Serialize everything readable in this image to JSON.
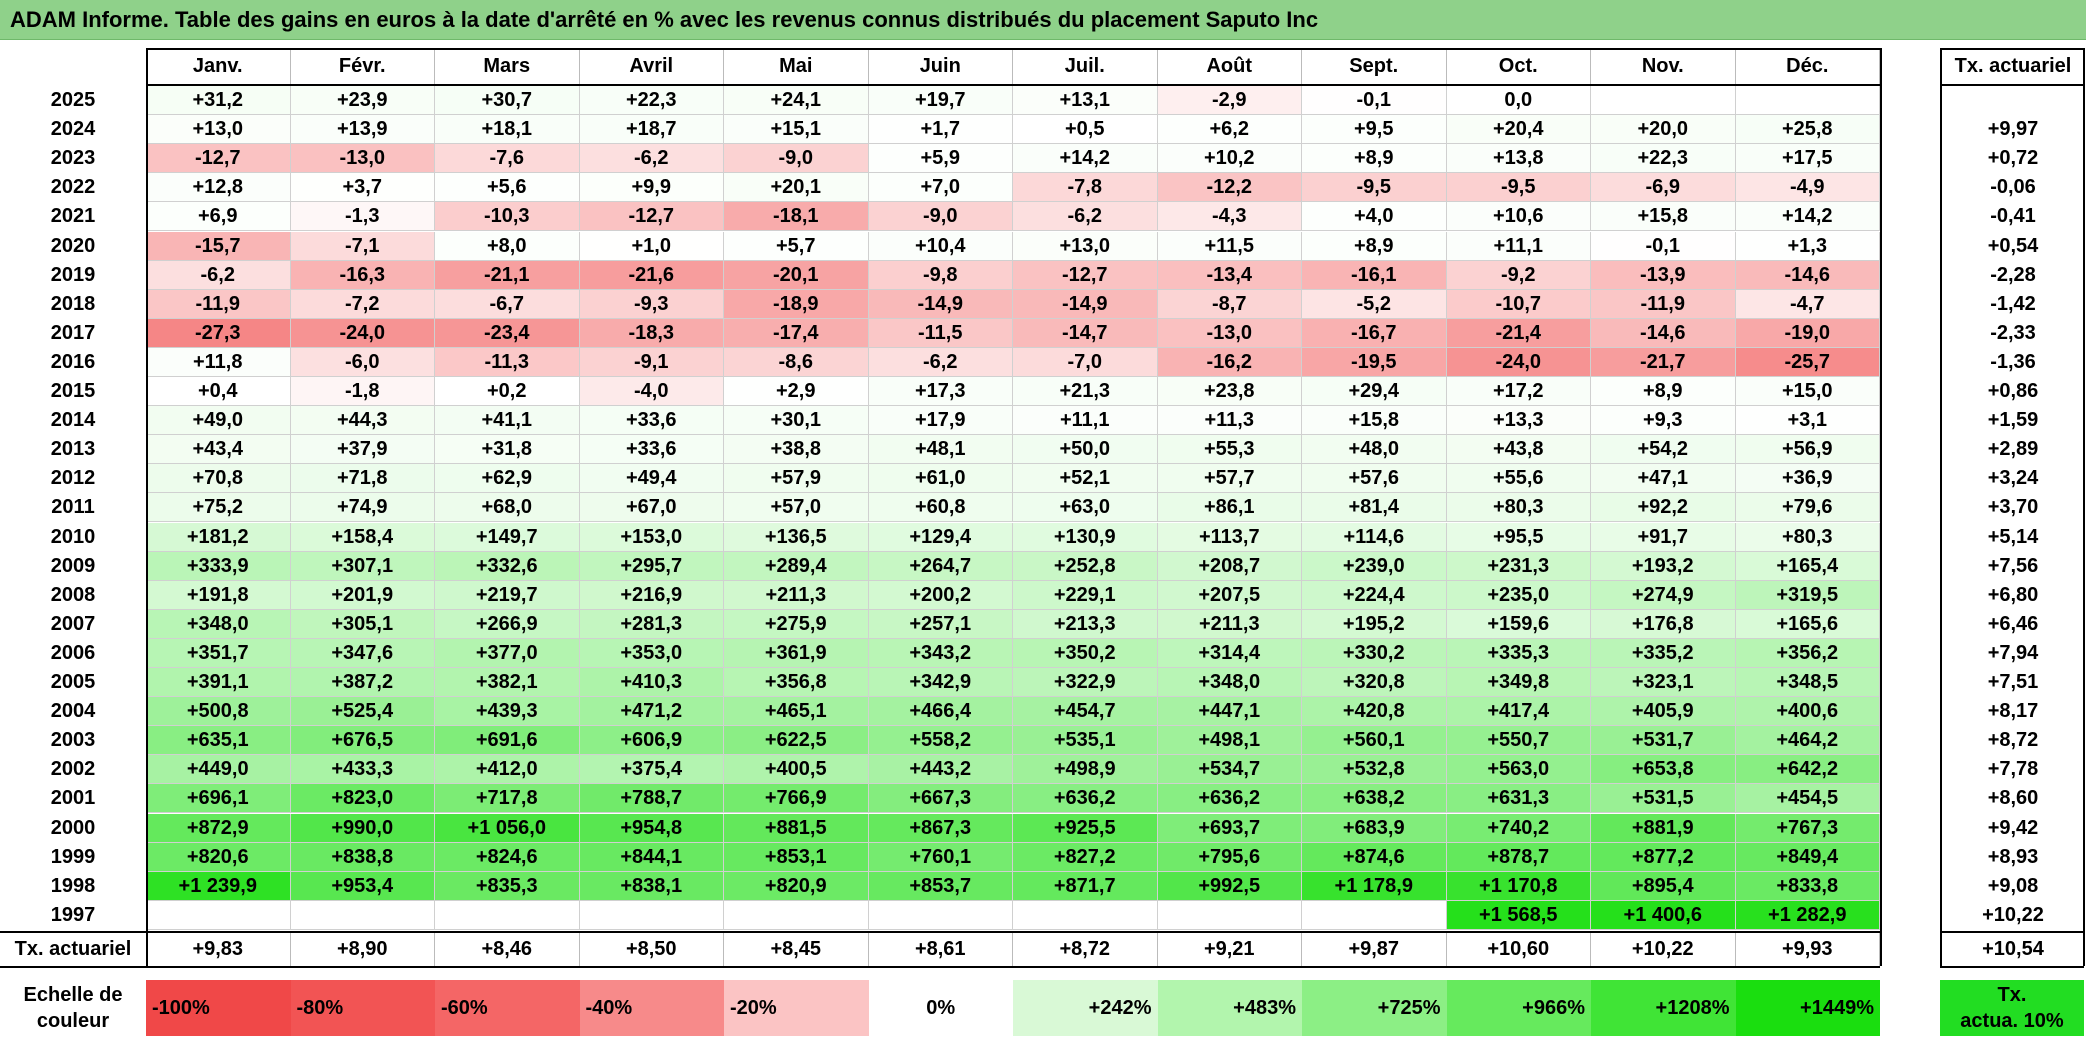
{
  "title": "ADAM Informe. Table des gains en euros à la date d'arrêté en % avec les revenus connus distribués du placement Saputo Inc",
  "chart_data": {
    "type": "table",
    "months": [
      "Janv.",
      "Févr.",
      "Mars",
      "Avril",
      "Mai",
      "Juin",
      "Juil.",
      "Août",
      "Sept.",
      "Oct.",
      "Nov.",
      "Déc."
    ],
    "rate_header": "Tx. actuariel",
    "rows": [
      {
        "year": "2025",
        "values": [
          "+31,2",
          "+23,9",
          "+30,7",
          "+22,3",
          "+24,1",
          "+19,7",
          "+13,1",
          "-2,9",
          "-0,1",
          "0,0",
          "",
          ""
        ],
        "rate": ""
      },
      {
        "year": "2024",
        "values": [
          "+13,0",
          "+13,9",
          "+18,1",
          "+18,7",
          "+15,1",
          "+1,7",
          "+0,5",
          "+6,2",
          "+9,5",
          "+20,4",
          "+20,0",
          "+25,8"
        ],
        "rate": "+9,97"
      },
      {
        "year": "2023",
        "values": [
          "-12,7",
          "-13,0",
          "-7,6",
          "-6,2",
          "-9,0",
          "+5,9",
          "+14,2",
          "+10,2",
          "+8,9",
          "+13,8",
          "+22,3",
          "+17,5"
        ],
        "rate": "+0,72"
      },
      {
        "year": "2022",
        "values": [
          "+12,8",
          "+3,7",
          "+5,6",
          "+9,9",
          "+20,1",
          "+7,0",
          "-7,8",
          "-12,2",
          "-9,5",
          "-9,5",
          "-6,9",
          "-4,9"
        ],
        "rate": "-0,06"
      },
      {
        "year": "2021",
        "values": [
          "+6,9",
          "-1,3",
          "-10,3",
          "-12,7",
          "-18,1",
          "-9,0",
          "-6,2",
          "-4,3",
          "+4,0",
          "+10,6",
          "+15,8",
          "+14,2"
        ],
        "rate": "-0,41"
      },
      {
        "year": "2020",
        "values": [
          "-15,7",
          "-7,1",
          "+8,0",
          "+1,0",
          "+5,7",
          "+10,4",
          "+13,0",
          "+11,5",
          "+8,9",
          "+11,1",
          "-0,1",
          "+1,3"
        ],
        "rate": "+0,54"
      },
      {
        "year": "2019",
        "values": [
          "-6,2",
          "-16,3",
          "-21,1",
          "-21,6",
          "-20,1",
          "-9,8",
          "-12,7",
          "-13,4",
          "-16,1",
          "-9,2",
          "-13,9",
          "-14,6"
        ],
        "rate": "-2,28"
      },
      {
        "year": "2018",
        "values": [
          "-11,9",
          "-7,2",
          "-6,7",
          "-9,3",
          "-18,9",
          "-14,9",
          "-14,9",
          "-8,7",
          "-5,2",
          "-10,7",
          "-11,9",
          "-4,7"
        ],
        "rate": "-1,42"
      },
      {
        "year": "2017",
        "values": [
          "-27,3",
          "-24,0",
          "-23,4",
          "-18,3",
          "-17,4",
          "-11,5",
          "-14,7",
          "-13,0",
          "-16,7",
          "-21,4",
          "-14,6",
          "-19,0"
        ],
        "rate": "-2,33"
      },
      {
        "year": "2016",
        "values": [
          "+11,8",
          "-6,0",
          "-11,3",
          "-9,1",
          "-8,6",
          "-6,2",
          "-7,0",
          "-16,2",
          "-19,5",
          "-24,0",
          "-21,7",
          "-25,7"
        ],
        "rate": "-1,36"
      },
      {
        "year": "2015",
        "values": [
          "+0,4",
          "-1,8",
          "+0,2",
          "-4,0",
          "+2,9",
          "+17,3",
          "+21,3",
          "+23,8",
          "+29,4",
          "+17,2",
          "+8,9",
          "+15,0"
        ],
        "rate": "+0,86"
      },
      {
        "year": "2014",
        "values": [
          "+49,0",
          "+44,3",
          "+41,1",
          "+33,6",
          "+30,1",
          "+17,9",
          "+11,1",
          "+11,3",
          "+15,8",
          "+13,3",
          "+9,3",
          "+3,1"
        ],
        "rate": "+1,59"
      },
      {
        "year": "2013",
        "values": [
          "+43,4",
          "+37,9",
          "+31,8",
          "+33,6",
          "+38,8",
          "+48,1",
          "+50,0",
          "+55,3",
          "+48,0",
          "+43,8",
          "+54,2",
          "+56,9"
        ],
        "rate": "+2,89"
      },
      {
        "year": "2012",
        "values": [
          "+70,8",
          "+71,8",
          "+62,9",
          "+49,4",
          "+57,9",
          "+61,0",
          "+52,1",
          "+57,7",
          "+57,6",
          "+55,6",
          "+47,1",
          "+36,9"
        ],
        "rate": "+3,24"
      },
      {
        "year": "2011",
        "values": [
          "+75,2",
          "+74,9",
          "+68,0",
          "+67,0",
          "+57,0",
          "+60,8",
          "+63,0",
          "+86,1",
          "+81,4",
          "+80,3",
          "+92,2",
          "+79,6"
        ],
        "rate": "+3,70"
      },
      {
        "year": "2010",
        "values": [
          "+181,2",
          "+158,4",
          "+149,7",
          "+153,0",
          "+136,5",
          "+129,4",
          "+130,9",
          "+113,7",
          "+114,6",
          "+95,5",
          "+91,7",
          "+80,3"
        ],
        "rate": "+5,14"
      },
      {
        "year": "2009",
        "values": [
          "+333,9",
          "+307,1",
          "+332,6",
          "+295,7",
          "+289,4",
          "+264,7",
          "+252,8",
          "+208,7",
          "+239,0",
          "+231,3",
          "+193,2",
          "+165,4"
        ],
        "rate": "+7,56"
      },
      {
        "year": "2008",
        "values": [
          "+191,8",
          "+201,9",
          "+219,7",
          "+216,9",
          "+211,3",
          "+200,2",
          "+229,1",
          "+207,5",
          "+224,4",
          "+235,0",
          "+274,9",
          "+319,5"
        ],
        "rate": "+6,80"
      },
      {
        "year": "2007",
        "values": [
          "+348,0",
          "+305,1",
          "+266,9",
          "+281,3",
          "+275,9",
          "+257,1",
          "+213,3",
          "+211,3",
          "+195,2",
          "+159,6",
          "+176,8",
          "+165,6"
        ],
        "rate": "+6,46"
      },
      {
        "year": "2006",
        "values": [
          "+351,7",
          "+347,6",
          "+377,0",
          "+353,0",
          "+361,9",
          "+343,2",
          "+350,2",
          "+314,4",
          "+330,2",
          "+335,3",
          "+335,2",
          "+356,2"
        ],
        "rate": "+7,94"
      },
      {
        "year": "2005",
        "values": [
          "+391,1",
          "+387,2",
          "+382,1",
          "+410,3",
          "+356,8",
          "+342,9",
          "+322,9",
          "+348,0",
          "+320,8",
          "+349,8",
          "+323,1",
          "+348,5"
        ],
        "rate": "+7,51"
      },
      {
        "year": "2004",
        "values": [
          "+500,8",
          "+525,4",
          "+439,3",
          "+471,2",
          "+465,1",
          "+466,4",
          "+454,7",
          "+447,1",
          "+420,8",
          "+417,4",
          "+405,9",
          "+400,6"
        ],
        "rate": "+8,17"
      },
      {
        "year": "2003",
        "values": [
          "+635,1",
          "+676,5",
          "+691,6",
          "+606,9",
          "+622,5",
          "+558,2",
          "+535,1",
          "+498,1",
          "+560,1",
          "+550,7",
          "+531,7",
          "+464,2"
        ],
        "rate": "+8,72"
      },
      {
        "year": "2002",
        "values": [
          "+449,0",
          "+433,3",
          "+412,0",
          "+375,4",
          "+400,5",
          "+443,2",
          "+498,9",
          "+534,7",
          "+532,8",
          "+563,0",
          "+653,8",
          "+642,2"
        ],
        "rate": "+7,78"
      },
      {
        "year": "2001",
        "values": [
          "+696,1",
          "+823,0",
          "+717,8",
          "+788,7",
          "+766,9",
          "+667,3",
          "+636,2",
          "+636,2",
          "+638,2",
          "+631,3",
          "+531,5",
          "+454,5"
        ],
        "rate": "+8,60"
      },
      {
        "year": "2000",
        "values": [
          "+872,9",
          "+990,0",
          "+1 056,0",
          "+954,8",
          "+881,5",
          "+867,3",
          "+925,5",
          "+693,7",
          "+683,9",
          "+740,2",
          "+881,9",
          "+767,3"
        ],
        "rate": "+9,42"
      },
      {
        "year": "1999",
        "values": [
          "+820,6",
          "+838,8",
          "+824,6",
          "+844,1",
          "+853,1",
          "+760,1",
          "+827,2",
          "+795,6",
          "+874,6",
          "+878,7",
          "+877,2",
          "+849,4"
        ],
        "rate": "+8,93"
      },
      {
        "year": "1998",
        "values": [
          "+1 239,9",
          "+953,4",
          "+835,3",
          "+838,1",
          "+820,9",
          "+853,7",
          "+871,7",
          "+992,5",
          "+1 178,9",
          "+1 170,8",
          "+895,4",
          "+833,8"
        ],
        "rate": "+9,08"
      },
      {
        "year": "1997",
        "values": [
          "",
          "",
          "",
          "",
          "",
          "",
          "",
          "",
          "",
          "+1 568,5",
          "+1 400,6",
          "+1 282,9"
        ],
        "rate": "+10,22"
      }
    ],
    "footer": {
      "label": "Tx. actuariel",
      "values": [
        "+9,83",
        "+8,90",
        "+8,46",
        "+8,50",
        "+8,45",
        "+8,61",
        "+8,72",
        "+9,21",
        "+9,87",
        "+10,60",
        "+10,22",
        "+9,93"
      ],
      "rate": "+10,54"
    },
    "legend": {
      "label_line1": "Echelle de",
      "label_line2": "couleur",
      "stops": [
        {
          "label": "-100%",
          "color": "#f04848"
        },
        {
          "label": "-80%",
          "color": "#f25454"
        },
        {
          "label": "-60%",
          "color": "#f46666"
        },
        {
          "label": "-40%",
          "color": "#f78a8a"
        },
        {
          "label": "-20%",
          "color": "#fbc4c4"
        },
        {
          "label": "0%",
          "color": "#ffffff"
        },
        {
          "label": "+242%",
          "color": "#d9f9d6"
        },
        {
          "label": "+483%",
          "color": "#b2f5ad"
        },
        {
          "label": "+725%",
          "color": "#8cef85"
        },
        {
          "label": "+966%",
          "color": "#66ea5d"
        },
        {
          "label": "+1208%",
          "color": "#40e436"
        },
        {
          "label": "+1449%",
          "color": "#1ade0f"
        }
      ],
      "rate_label_line1": "Tx.",
      "rate_label_line2": "actua. 10%",
      "rate_color": "#22dd22"
    },
    "colors": {
      "title_bg": "#8fd18a",
      "negative_max": "#f04848",
      "positive_max": "#1ade0f",
      "neutral": "#ffffff"
    }
  }
}
